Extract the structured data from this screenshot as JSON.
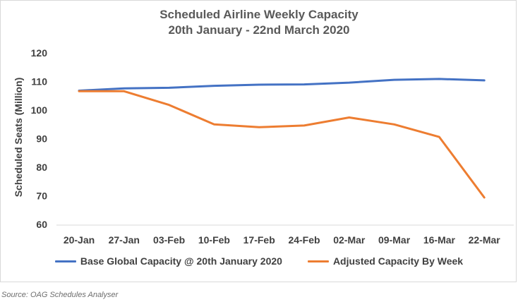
{
  "chart_data": {
    "type": "line",
    "title": [
      "Scheduled Airline Weekly Capacity",
      "20th January - 22nd March 2020"
    ],
    "ylabel": "Scheduled Seats (Million)",
    "xlabel": "",
    "categories": [
      "20-Jan",
      "27-Jan",
      "03-Feb",
      "10-Feb",
      "17-Feb",
      "24-Feb",
      "02-Mar",
      "09-Mar",
      "16-Mar",
      "22-Mar"
    ],
    "ylim": [
      60,
      120
    ],
    "yticks": [
      60,
      70,
      80,
      90,
      100,
      110,
      120
    ],
    "grid": false,
    "legend_position": "bottom",
    "series": [
      {
        "name": "Base Global Capacity @ 20th January 2020",
        "color": "#4472C4",
        "values": [
          106.8,
          107.6,
          107.8,
          108.5,
          108.9,
          109.0,
          109.6,
          110.6,
          110.9,
          110.4
        ]
      },
      {
        "name": "Adjusted Capacity By Week",
        "color": "#ED7D31",
        "values": [
          106.6,
          106.6,
          101.8,
          95.0,
          94.0,
          94.6,
          97.4,
          95.0,
          90.6,
          69.4
        ]
      }
    ]
  },
  "source": "Source: OAG Schedules Analyser"
}
